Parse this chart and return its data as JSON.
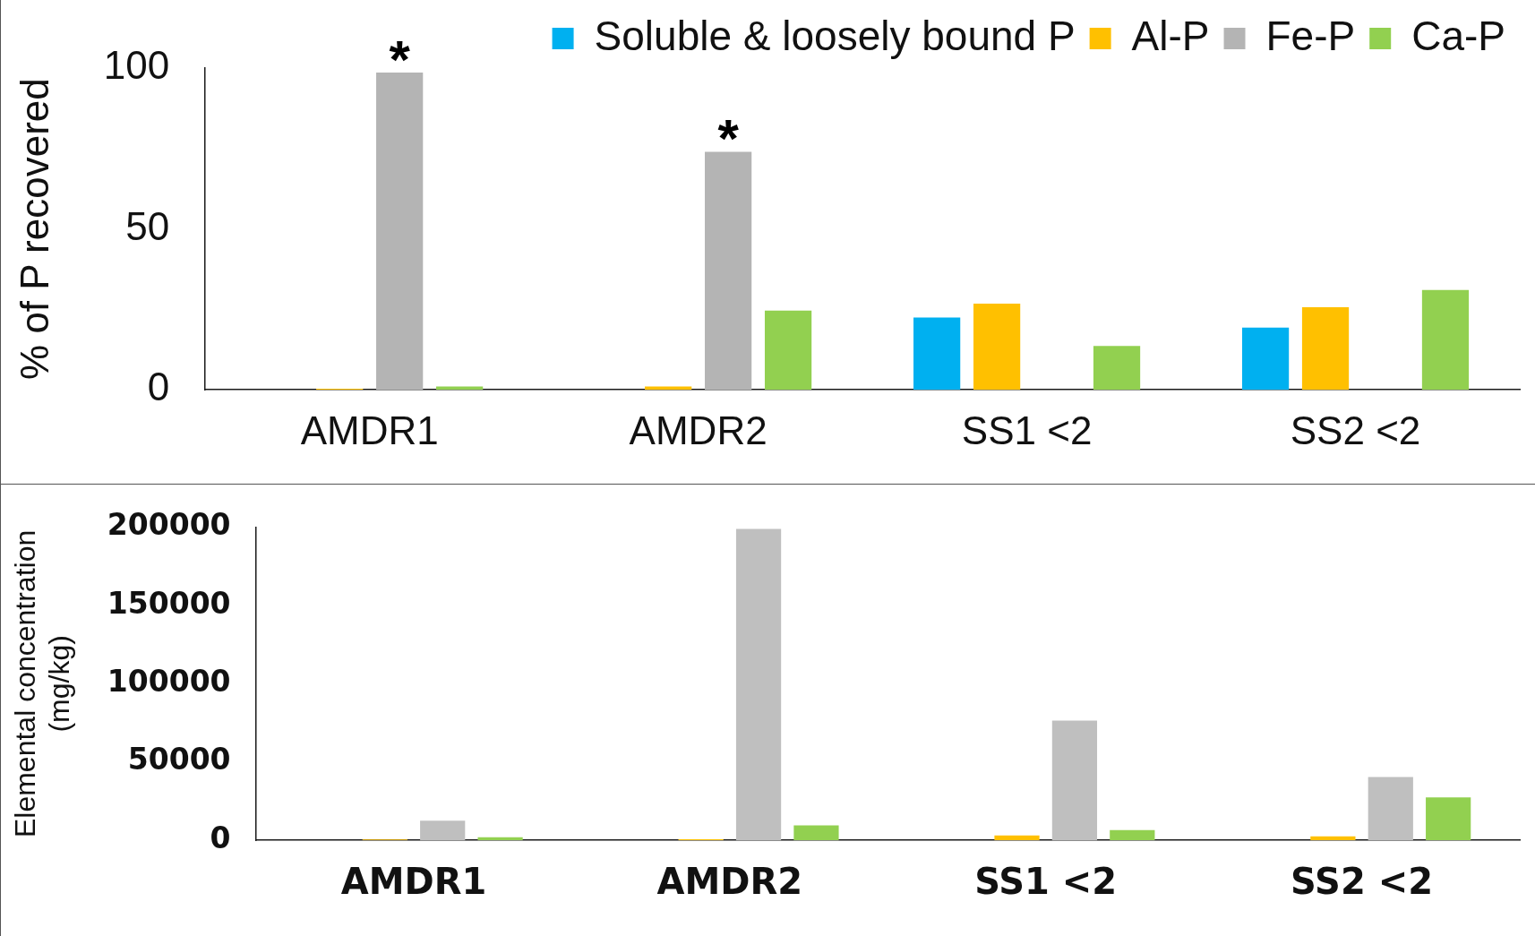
{
  "chart_data": [
    {
      "type": "bar",
      "ylabel": "% of P recovered",
      "categories": [
        "AMDR1",
        "AMDR2",
        "SS1 <2",
        "SS2 <2"
      ],
      "ylim": [
        0,
        100
      ],
      "yticks": [
        0,
        50,
        100
      ],
      "grid": false,
      "legend": "top right",
      "series": [
        {
          "name": "Soluble & loosely bound P",
          "color": "#00b0f0",
          "values": [
            null,
            null,
            22.5,
            19.3
          ]
        },
        {
          "name": "Al-P",
          "color": "#ffc000",
          "values": [
            0.3,
            1,
            26.8,
            25.7
          ]
        },
        {
          "name": "Fe-P",
          "color": "#b4b4b4",
          "values": [
            98.6,
            74,
            null,
            null
          ]
        },
        {
          "name": "Ca-P",
          "color": "#92d050",
          "values": [
            1,
            24.6,
            13.6,
            31
          ]
        }
      ],
      "annotations": [
        "*",
        "*"
      ]
    },
    {
      "type": "bar",
      "ylabel": "Elemental concentration\n(mg/kg)",
      "categories": [
        "AMDR1",
        "AMDR2",
        "SS1 <2",
        "SS2 <2"
      ],
      "ylim": [
        0,
        200000
      ],
      "yticks": [
        0,
        50000,
        100000,
        150000,
        200000
      ],
      "grid": false,
      "series": [
        {
          "values": [
            null,
            null,
            null,
            null
          ]
        },
        {
          "color": "#ffc000",
          "values": [
            500,
            600,
            3000,
            2400
          ]
        },
        {
          "color": "#bfbfbf",
          "values": [
            12500,
            199000,
            76500,
            40400
          ]
        },
        {
          "color": "#92d050",
          "values": [
            1800,
            9500,
            6500,
            27300
          ]
        }
      ]
    }
  ]
}
